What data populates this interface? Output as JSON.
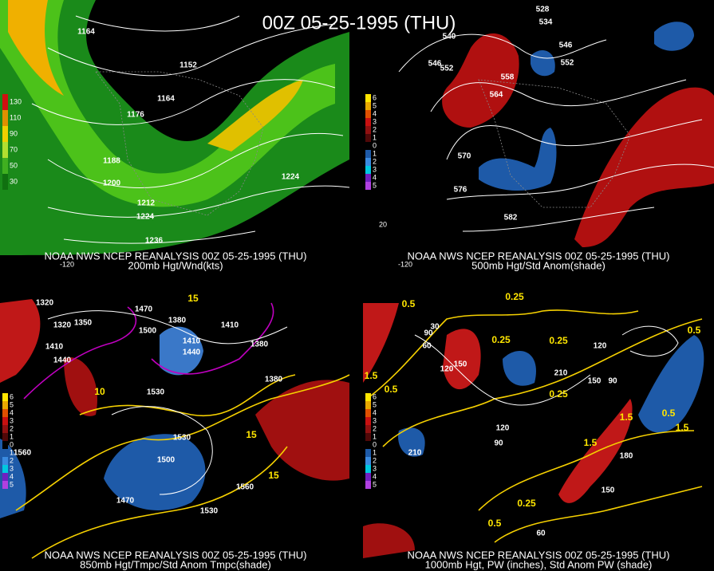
{
  "title": "00Z 05-25-1995 (THU)",
  "panels": [
    {
      "source": "NOAA NWS NCEP REANALYSIS 00Z 05-25-1995 (THU)",
      "caption": "200mb Hgt/Wnd(kts)",
      "legend": [
        "130",
        "110",
        "90",
        "70",
        "50",
        "30"
      ],
      "axis_labels": [
        "-120"
      ],
      "contour_labels": [
        "1164",
        "1152",
        "1164",
        "1176",
        "1188",
        "1200",
        "1212",
        "1224",
        "1236",
        "1224"
      ]
    },
    {
      "source": "NOAA NWS NCEP REANALYSIS 00Z 05-25-1995 (THU)",
      "caption": "500mb Hgt/Std Anom(shade)",
      "legend": [
        "6",
        "5",
        "4",
        "3",
        "2",
        "1",
        "0",
        "1",
        "2",
        "3",
        "4",
        "5"
      ],
      "axis_labels": [
        "-120",
        "20"
      ],
      "contour_labels": [
        "528",
        "534",
        "540",
        "546",
        "552",
        "546",
        "552",
        "558",
        "564",
        "570",
        "576",
        "582"
      ]
    },
    {
      "source": "NOAA NWS NCEP REANALYSIS 00Z 05-25-1995 (THU)",
      "caption": "850mb Hgt/Tmpc/Std Anom Tmpc(shade)",
      "legend": [
        "6",
        "5",
        "4",
        "3",
        "2",
        "1",
        "0",
        "1",
        "2",
        "3",
        "4",
        "5"
      ],
      "axis_labels": [],
      "contour_labels": [
        "1320",
        "1320",
        "1350",
        "1410",
        "1440",
        "1470",
        "1500",
        "1380",
        "1410",
        "1440",
        "1410",
        "1380",
        "1380",
        "1530",
        "1530",
        "1500",
        "1470",
        "1530",
        "1560",
        "1560"
      ],
      "temp_labels": [
        "10",
        "15",
        "15",
        "15"
      ]
    },
    {
      "source": "NOAA NWS NCEP REANALYSIS 00Z 05-25-1995 (THU)",
      "caption": "1000mb Hgt, PW (inches), Std Anom PW (shade)",
      "legend": [
        "6",
        "5",
        "4",
        "3",
        "2",
        "1",
        "0",
        "1",
        "2",
        "3",
        "4",
        "5"
      ],
      "axis_labels": [],
      "contour_labels": [
        "30",
        "60",
        "90",
        "120",
        "150",
        "210",
        "150",
        "90",
        "120",
        "120",
        "90",
        "210",
        "180",
        "150",
        "60"
      ],
      "temp_labels": [
        "0.5",
        "0.25",
        "1.5",
        "0.5",
        "0.25",
        "0.25",
        "0.25",
        "1.5",
        "0.5",
        "1.5",
        "0.25",
        "0.5",
        "0.5",
        "1.5"
      ]
    }
  ]
}
